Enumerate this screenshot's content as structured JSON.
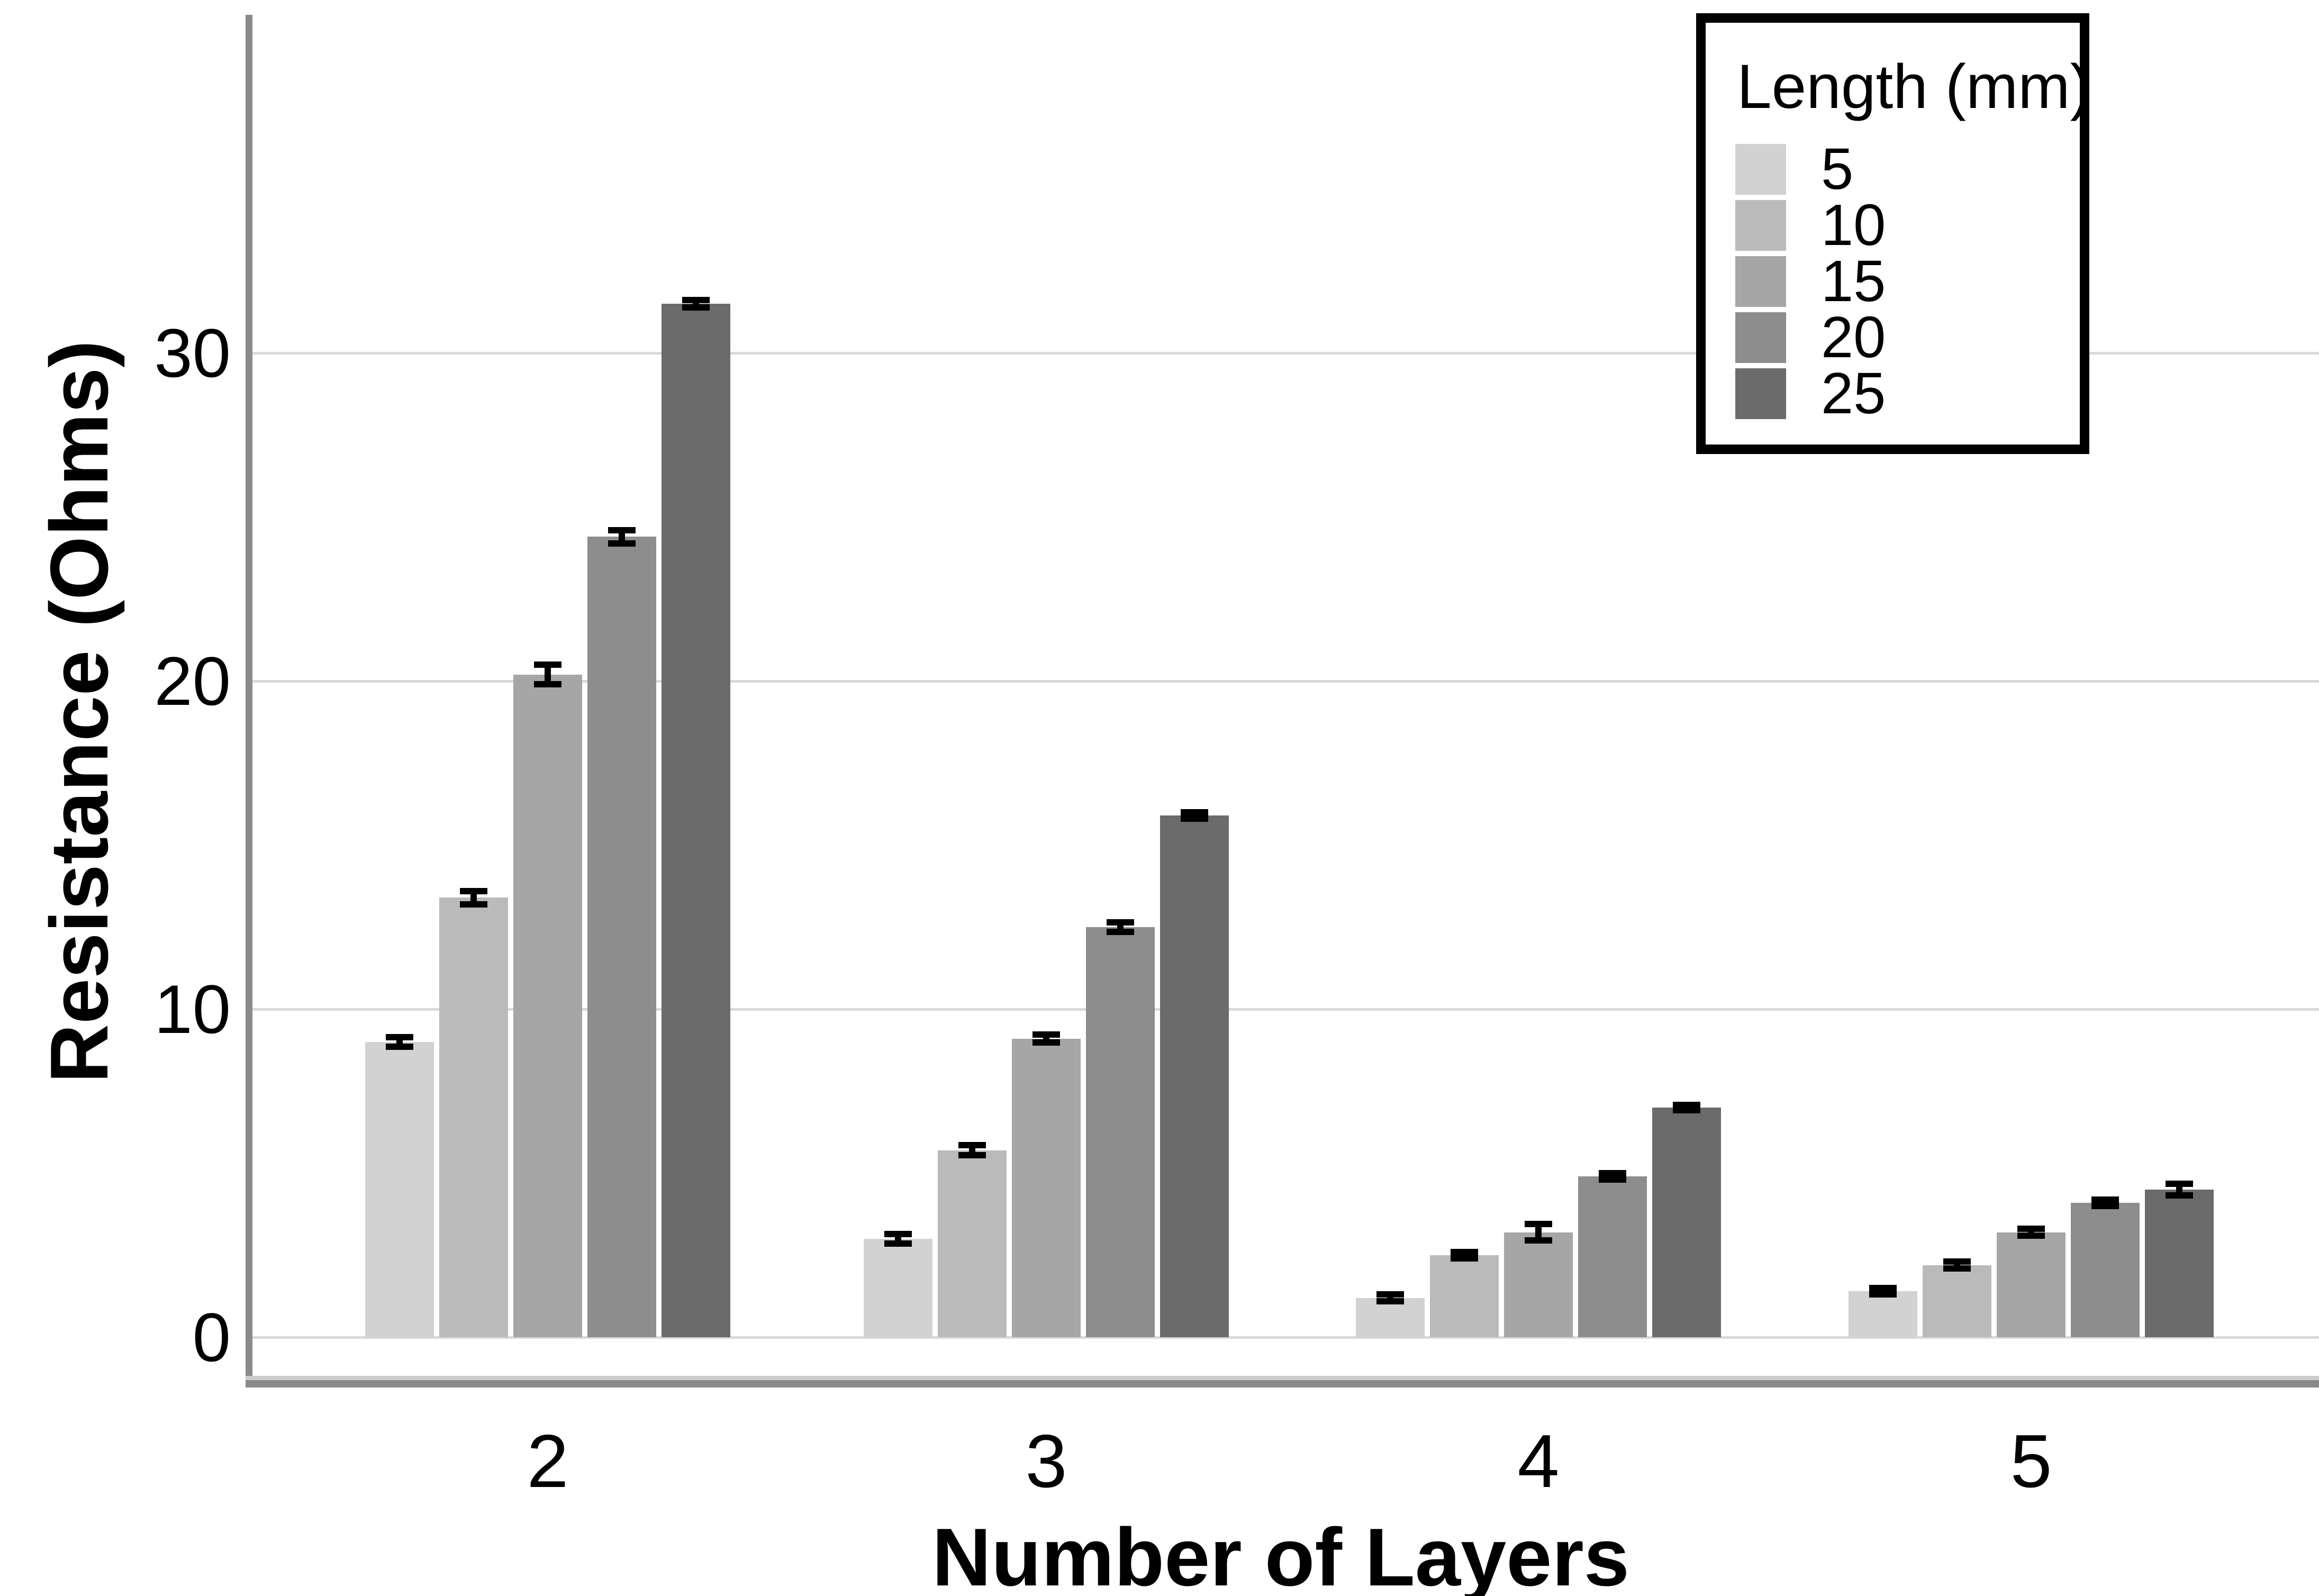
{
  "chart_data": {
    "type": "bar",
    "title": "",
    "xlabel": "Number of Layers",
    "ylabel": "Resistance (Ohms)",
    "categories": [
      "2",
      "3",
      "4",
      "5"
    ],
    "yticks": [
      0,
      10,
      20,
      30
    ],
    "ylim": [
      0,
      40
    ],
    "grid": "horizontal",
    "legend": {
      "title": "Length (mm)",
      "position": "top-right"
    },
    "series": [
      {
        "name": "5",
        "color": "#d2d2d2",
        "values": [
          9.0,
          3.0,
          1.2,
          1.4
        ],
        "errors": [
          0.15,
          0.15,
          0.1,
          0.1
        ]
      },
      {
        "name": "10",
        "color": "#bababa",
        "values": [
          13.4,
          5.7,
          2.5,
          2.2
        ],
        "errors": [
          0.2,
          0.15,
          0.1,
          0.1
        ]
      },
      {
        "name": "15",
        "color": "#a6a6a6",
        "values": [
          20.2,
          9.1,
          3.2,
          3.2
        ],
        "errors": [
          0.3,
          0.12,
          0.25,
          0.1
        ]
      },
      {
        "name": "20",
        "color": "#8d8d8d",
        "values": [
          24.4,
          12.5,
          4.9,
          4.1
        ],
        "errors": [
          0.2,
          0.15,
          0.1,
          0.1
        ]
      },
      {
        "name": "25",
        "color": "#6b6b6b",
        "values": [
          31.5,
          15.9,
          7.0,
          4.5
        ],
        "errors": [
          0.12,
          0.1,
          0.08,
          0.18
        ]
      }
    ],
    "colors": {
      "error_bar": "#000000",
      "gridline": "#d9d9d9",
      "y_axis_line": "#8a8a8a",
      "x_axis_line_dark": "#8a8a8a",
      "x_axis_line_light": "#cccccc",
      "text": "#000000",
      "background": "#ffffff",
      "legend_border": "#000000"
    }
  }
}
